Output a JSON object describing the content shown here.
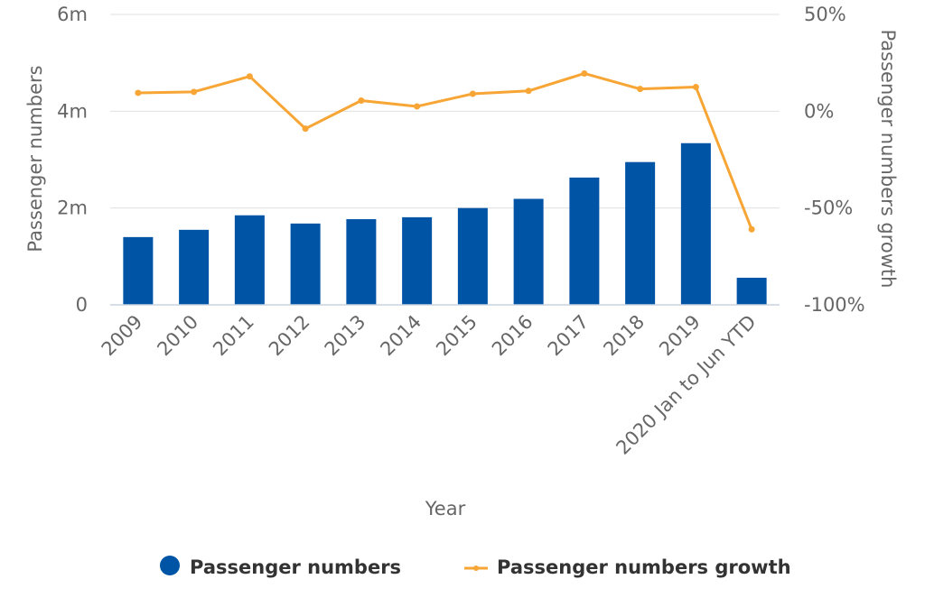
{
  "chart_data": {
    "type": "bar",
    "categories": [
      "2009",
      "2010",
      "2011",
      "2012",
      "2013",
      "2014",
      "2015",
      "2016",
      "2017",
      "2018",
      "2019",
      "2020 Jan to Jun YTD"
    ],
    "xlabel": "Year",
    "ylabel": "Passenger numbers",
    "y2label": "Passenger numbers growth",
    "ylim": [
      0,
      6000000
    ],
    "y2lim": [
      -100,
      50
    ],
    "y_ticks": [
      {
        "value": 0,
        "label": "0"
      },
      {
        "value": 2000000,
        "label": "2m"
      },
      {
        "value": 4000000,
        "label": "4m"
      },
      {
        "value": 6000000,
        "label": "6m"
      }
    ],
    "y2_ticks": [
      {
        "value": -100,
        "label": "-100%"
      },
      {
        "value": -50,
        "label": "-50%"
      },
      {
        "value": 0,
        "label": "0%"
      },
      {
        "value": 50,
        "label": "50%"
      }
    ],
    "grid": true,
    "legend_position": "bottom",
    "series": [
      {
        "name": "Passenger numbers",
        "type": "bar",
        "axis": "left",
        "color": "#0054a6",
        "values": [
          1400000,
          1550000,
          1850000,
          1680000,
          1770000,
          1810000,
          2000000,
          2190000,
          2630000,
          2950000,
          3340000,
          560000
        ]
      },
      {
        "name": "Passenger numbers growth",
        "type": "line",
        "axis": "right",
        "color": "#f7a535",
        "values": [
          9.5,
          10,
          18,
          -9,
          5.5,
          2.5,
          9,
          10.5,
          19.5,
          11.5,
          12.5,
          -61
        ]
      }
    ]
  }
}
